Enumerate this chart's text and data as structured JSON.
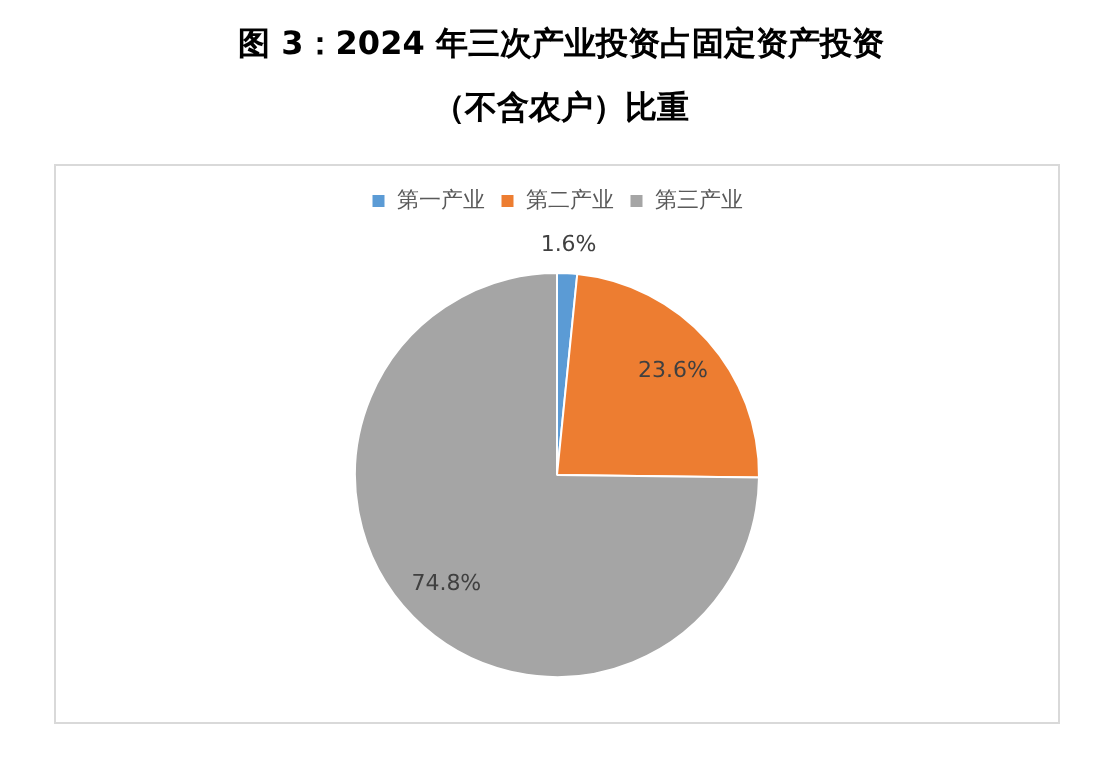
{
  "chart_data": {
    "type": "pie",
    "title": "图 3：2024 年三次产业投资占固定资产投资（不含农户）比重",
    "categories": [
      "第一产业",
      "第二产业",
      "第三产业"
    ],
    "values": [
      1.6,
      23.6,
      74.8
    ],
    "colors": [
      "#5b9bd5",
      "#ed7d31",
      "#a5a5a5"
    ],
    "value_labels": [
      "1.6%",
      "23.6%",
      "74.8%"
    ],
    "legend": "top"
  }
}
